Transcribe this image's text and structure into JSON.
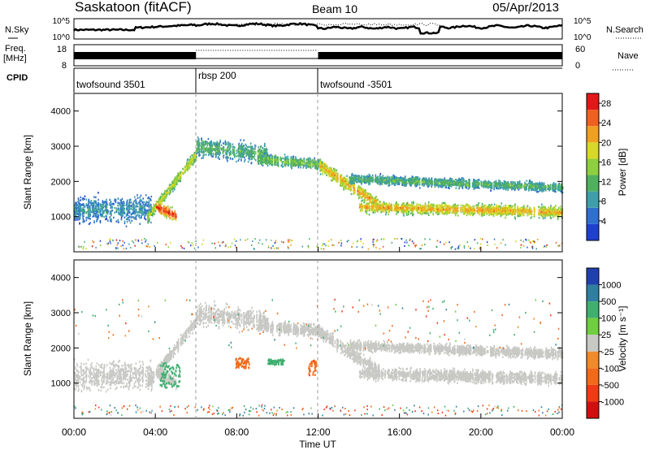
{
  "header": {
    "station": "Saskatoon (fitACF)",
    "beam": "Beam 10",
    "date": "05/Apr/2013"
  },
  "strips": {
    "nsky_label": "N.Sky",
    "nsky_ticks": [
      "10^5",
      "10^0"
    ],
    "nsearch_label": "N.Search",
    "nsearch_ticks": [
      "10^5",
      "10^0"
    ],
    "freq_label": "Freq.",
    "freq_unit": "[MHz]",
    "freq_ticks": [
      "18",
      "8"
    ],
    "nave_label": "Nave",
    "nave_ticks": [
      "60",
      "0"
    ],
    "cpid_label": "CPID",
    "cpid_segments": [
      {
        "label": "twofsound 3501",
        "start_h": 0,
        "end_h": 6
      },
      {
        "label": "rbsp 200",
        "start_h": 6,
        "end_h": 12
      },
      {
        "label": "twofsound -3501",
        "start_h": 12,
        "end_h": 24
      }
    ]
  },
  "panels": {
    "power": {
      "ylabel": "Slant Range [km]",
      "cbar_label": "Power [dB]"
    },
    "velocity": {
      "ylabel": "Slant Range [km]",
      "cbar_label": "Velocity [m s⁻¹]"
    }
  },
  "colors": {
    "power": [
      "#1f3fcf",
      "#2f6fd0",
      "#3f9fa8",
      "#4fb05f",
      "#8fcf3f",
      "#d8d82a",
      "#f0a020",
      "#f06020",
      "#e01818"
    ],
    "velocity_pos": [
      "#2040b0",
      "#2f7fa0",
      "#3faf6f",
      "#6fcf3f"
    ],
    "velocity_zero": "#c8c8c4",
    "velocity_neg": [
      "#f08a2a",
      "#f06a1a",
      "#f03a14",
      "#d01010"
    ]
  },
  "chart_data": [
    {
      "type": "heatmap",
      "name": "power",
      "xlabel": "Time UT",
      "ylabel": "Slant Range [km]",
      "x_ticks": [
        "00:00",
        "04:00",
        "08:00",
        "12:00",
        "16:00",
        "20:00",
        "00:00"
      ],
      "xlim": [
        0,
        24
      ],
      "ylim": [
        0,
        4500
      ],
      "y_ticks": [
        1000,
        2000,
        3000,
        4000
      ],
      "colorbar": {
        "label": "Power [dB]",
        "ticks": [
          4,
          8,
          12,
          16,
          20,
          24,
          28
        ],
        "range": [
          0,
          30
        ]
      },
      "features": [
        {
          "start_h": 0.0,
          "end_h": 3.8,
          "center_km_start": 1200,
          "center_km_end": 1250,
          "width_km": 700,
          "power_db": 8
        },
        {
          "start_h": 3.6,
          "end_h": 6.0,
          "center_km_start": 1000,
          "center_km_end": 2800,
          "width_km": 300,
          "power_db": 18
        },
        {
          "start_h": 4.0,
          "end_h": 5.0,
          "center_km_start": 1300,
          "center_km_end": 1050,
          "width_km": 300,
          "power_db": 28
        },
        {
          "start_h": 6.0,
          "end_h": 9.5,
          "center_km_start": 3000,
          "center_km_end": 2800,
          "width_km": 500,
          "power_db": 12
        },
        {
          "start_h": 9.0,
          "end_h": 12.2,
          "center_km_start": 2650,
          "center_km_end": 2500,
          "width_km": 300,
          "power_db": 14
        },
        {
          "start_h": 12.0,
          "end_h": 15.0,
          "center_km_start": 2500,
          "center_km_end": 1350,
          "width_km": 350,
          "power_db": 22
        },
        {
          "start_h": 14.0,
          "end_h": 24.0,
          "center_km_start": 1300,
          "center_km_end": 1150,
          "width_km": 300,
          "power_db": 22
        },
        {
          "start_h": 13.5,
          "end_h": 24.0,
          "center_km_start": 2100,
          "center_km_end": 1850,
          "width_km": 250,
          "power_db": 12
        }
      ]
    },
    {
      "type": "heatmap",
      "name": "velocity",
      "xlabel": "Time UT",
      "ylabel": "Slant Range [km]",
      "x_ticks": [
        "00:00",
        "04:00",
        "08:00",
        "12:00",
        "16:00",
        "20:00",
        "00:00"
      ],
      "xlim": [
        0,
        24
      ],
      "ylim": [
        0,
        4500
      ],
      "y_ticks": [
        1000,
        2000,
        3000,
        4000
      ],
      "colorbar": {
        "label": "Velocity [m s⁻¹]",
        "ticks": [
          1000,
          500,
          100,
          25,
          -25,
          -100,
          -500,
          -1000
        ]
      },
      "features": [
        {
          "start_h": 0.0,
          "end_h": 24.0,
          "description": "ground scatter",
          "velocity_ms": 0
        },
        {
          "start_h": 7.9,
          "end_h": 8.6,
          "range_km": [
            1450,
            1750
          ],
          "velocity_ms": -300
        },
        {
          "start_h": 9.5,
          "end_h": 10.3,
          "range_km": [
            1550,
            1700
          ],
          "velocity_ms": 150
        },
        {
          "start_h": 11.5,
          "end_h": 11.9,
          "range_km": [
            1250,
            1700
          ],
          "velocity_ms": -400
        },
        {
          "start_h": 4.2,
          "end_h": 5.2,
          "range_km": [
            900,
            1600
          ],
          "velocity_ms": 300
        }
      ]
    }
  ]
}
